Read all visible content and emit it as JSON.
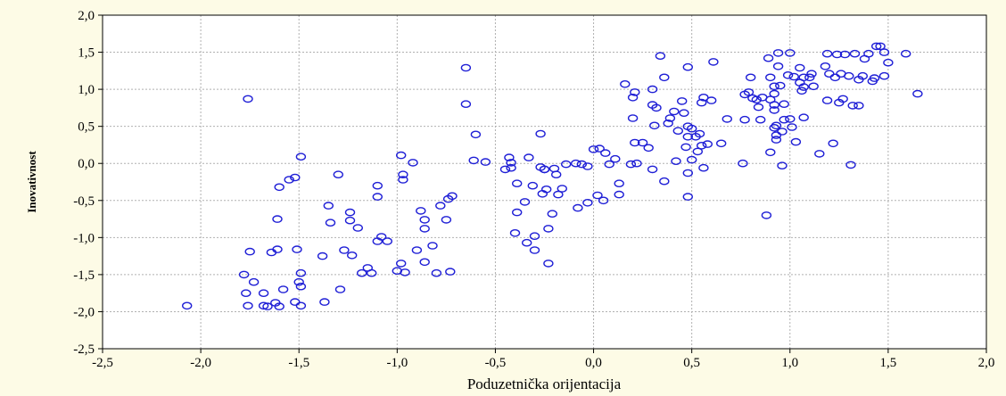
{
  "chart_data": {
    "type": "scatter",
    "xlabel": "Poduzetnička orijentacija",
    "ylabel": "Inovativnost",
    "xlim": [
      -2.5,
      2.0
    ],
    "ylim": [
      -2.5,
      2.0
    ],
    "xticks": [
      "-2,5",
      "-2,0",
      "-1,5",
      "-1,0",
      "-0,5",
      "0,0",
      "0,5",
      "1,0",
      "1,5",
      "2,0"
    ],
    "yticks": [
      "-2,5",
      "-2,0",
      "-1,5",
      "-1,0",
      "-0,5",
      "0,0",
      "0,5",
      "1,0",
      "1,5",
      "2,0"
    ],
    "grid": true,
    "marker": "open-circle",
    "marker_color": "#1f1fd6",
    "points": [
      [
        -2.07,
        -1.92
      ],
      [
        -1.76,
        0.87
      ],
      [
        -1.78,
        -1.5
      ],
      [
        -1.77,
        -1.75
      ],
      [
        -1.76,
        -1.92
      ],
      [
        -1.75,
        -1.19
      ],
      [
        -1.73,
        -1.6
      ],
      [
        -1.68,
        -1.75
      ],
      [
        -1.68,
        -1.92
      ],
      [
        -1.66,
        -1.93
      ],
      [
        -1.64,
        -1.2
      ],
      [
        -1.62,
        -1.88
      ],
      [
        -1.61,
        -1.16
      ],
      [
        -1.6,
        -1.93
      ],
      [
        -1.61,
        -0.75
      ],
      [
        -1.6,
        -0.32
      ],
      [
        -1.58,
        -1.7
      ],
      [
        -1.55,
        -0.22
      ],
      [
        -1.52,
        -0.19
      ],
      [
        -1.51,
        -1.16
      ],
      [
        -1.5,
        -1.6
      ],
      [
        -1.49,
        -1.66
      ],
      [
        -1.49,
        -1.92
      ],
      [
        -1.52,
        -1.87
      ],
      [
        -1.49,
        -1.48
      ],
      [
        -1.49,
        0.09
      ],
      [
        -1.38,
        -1.25
      ],
      [
        -1.37,
        -1.87
      ],
      [
        -1.35,
        -0.57
      ],
      [
        -1.34,
        -0.8
      ],
      [
        -1.29,
        -1.7
      ],
      [
        -1.3,
        -0.15
      ],
      [
        -1.27,
        -1.17
      ],
      [
        -1.24,
        -0.66
      ],
      [
        -1.24,
        -0.77
      ],
      [
        -1.23,
        -1.24
      ],
      [
        -1.2,
        -0.87
      ],
      [
        -1.18,
        -1.48
      ],
      [
        -1.15,
        -1.41
      ],
      [
        -1.13,
        -1.48
      ],
      [
        -1.1,
        -1.05
      ],
      [
        -1.1,
        -0.3
      ],
      [
        -1.1,
        -0.45
      ],
      [
        -1.08,
        -0.99
      ],
      [
        -1.05,
        -1.05
      ],
      [
        -1.0,
        -1.45
      ],
      [
        -0.98,
        -1.35
      ],
      [
        -0.96,
        -1.47
      ],
      [
        -0.98,
        0.11
      ],
      [
        -0.97,
        -0.15
      ],
      [
        -0.97,
        -0.22
      ],
      [
        -0.92,
        0.01
      ],
      [
        -0.9,
        -1.17
      ],
      [
        -0.88,
        -0.64
      ],
      [
        -0.86,
        -0.76
      ],
      [
        -0.86,
        -0.88
      ],
      [
        -0.86,
        -1.33
      ],
      [
        -0.82,
        -1.11
      ],
      [
        -0.8,
        -1.48
      ],
      [
        -0.78,
        -0.57
      ],
      [
        -0.75,
        -0.76
      ],
      [
        -0.74,
        -0.48
      ],
      [
        -0.73,
        -1.46
      ],
      [
        -0.72,
        -0.44
      ],
      [
        -0.65,
        1.29
      ],
      [
        -0.65,
        0.8
      ],
      [
        -0.6,
        0.39
      ],
      [
        -0.61,
        0.04
      ],
      [
        -0.55,
        0.02
      ],
      [
        -0.45,
        -0.08
      ],
      [
        -0.43,
        0.08
      ],
      [
        -0.42,
        0.01
      ],
      [
        -0.42,
        -0.06
      ],
      [
        -0.39,
        -0.27
      ],
      [
        -0.39,
        -0.66
      ],
      [
        -0.4,
        -0.94
      ],
      [
        -0.35,
        -0.52
      ],
      [
        -0.34,
        -1.07
      ],
      [
        -0.33,
        0.08
      ],
      [
        -0.31,
        -0.3
      ],
      [
        -0.3,
        -0.98
      ],
      [
        -0.3,
        -1.17
      ],
      [
        -0.27,
        -0.05
      ],
      [
        -0.26,
        -0.41
      ],
      [
        -0.27,
        0.4
      ],
      [
        -0.25,
        -0.08
      ],
      [
        -0.25,
        -0.08
      ],
      [
        -0.24,
        -0.35
      ],
      [
        -0.23,
        -0.88
      ],
      [
        -0.23,
        -1.35
      ],
      [
        -0.21,
        -0.68
      ],
      [
        -0.2,
        -0.07
      ],
      [
        -0.19,
        -0.15
      ],
      [
        -0.18,
        -0.42
      ],
      [
        -0.16,
        -0.34
      ],
      [
        -0.14,
        -0.01
      ],
      [
        -0.09,
        0.0
      ],
      [
        -0.08,
        -0.6
      ],
      [
        -0.06,
        -0.01
      ],
      [
        -0.03,
        -0.04
      ],
      [
        -0.03,
        -0.53
      ],
      [
        0.0,
        0.19
      ],
      [
        0.02,
        -0.43
      ],
      [
        0.03,
        0.2
      ],
      [
        0.05,
        -0.5
      ],
      [
        0.06,
        0.14
      ],
      [
        0.08,
        -0.01
      ],
      [
        0.11,
        0.06
      ],
      [
        0.13,
        -0.27
      ],
      [
        0.13,
        -0.42
      ],
      [
        0.16,
        1.07
      ],
      [
        0.19,
        -0.01
      ],
      [
        0.2,
        0.61
      ],
      [
        0.2,
        0.89
      ],
      [
        0.21,
        0.28
      ],
      [
        0.21,
        0.96
      ],
      [
        0.22,
        0.0
      ],
      [
        0.25,
        0.28
      ],
      [
        0.28,
        0.21
      ],
      [
        0.3,
        0.79
      ],
      [
        0.31,
        0.51
      ],
      [
        0.3,
        1.0
      ],
      [
        0.3,
        -0.08
      ],
      [
        0.32,
        0.75
      ],
      [
        0.34,
        1.45
      ],
      [
        0.36,
        1.16
      ],
      [
        0.36,
        -0.24
      ],
      [
        0.38,
        0.54
      ],
      [
        0.39,
        0.61
      ],
      [
        0.41,
        0.7
      ],
      [
        0.42,
        0.03
      ],
      [
        0.43,
        0.44
      ],
      [
        0.45,
        0.84
      ],
      [
        0.46,
        0.68
      ],
      [
        0.47,
        0.22
      ],
      [
        0.48,
        0.36
      ],
      [
        0.48,
        0.5
      ],
      [
        0.48,
        1.3
      ],
      [
        0.48,
        -0.13
      ],
      [
        0.48,
        -0.45
      ],
      [
        0.5,
        0.05
      ],
      [
        0.5,
        0.47
      ],
      [
        0.52,
        0.36
      ],
      [
        0.53,
        0.16
      ],
      [
        0.54,
        0.4
      ],
      [
        0.55,
        0.24
      ],
      [
        0.55,
        0.82
      ],
      [
        0.56,
        0.89
      ],
      [
        0.56,
        -0.06
      ],
      [
        0.58,
        0.26
      ],
      [
        0.6,
        0.85
      ],
      [
        0.61,
        1.37
      ],
      [
        0.65,
        0.27
      ],
      [
        0.68,
        0.6
      ],
      [
        0.76,
        0.0
      ],
      [
        0.77,
        0.93
      ],
      [
        0.77,
        0.59
      ],
      [
        0.79,
        0.96
      ],
      [
        0.8,
        1.16
      ],
      [
        0.81,
        0.88
      ],
      [
        0.83,
        0.86
      ],
      [
        0.84,
        0.76
      ],
      [
        0.85,
        0.59
      ],
      [
        0.86,
        0.89
      ],
      [
        0.88,
        -0.7
      ],
      [
        0.89,
        1.42
      ],
      [
        0.9,
        1.16
      ],
      [
        0.9,
        0.86
      ],
      [
        0.9,
        0.15
      ],
      [
        0.92,
        1.04
      ],
      [
        0.92,
        0.94
      ],
      [
        0.92,
        0.79
      ],
      [
        0.92,
        0.72
      ],
      [
        0.92,
        0.48
      ],
      [
        0.93,
        0.38
      ],
      [
        0.93,
        0.32
      ],
      [
        0.93,
        0.51
      ],
      [
        0.94,
        1.31
      ],
      [
        0.94,
        1.49
      ],
      [
        0.95,
        1.05
      ],
      [
        0.96,
        0.43
      ],
      [
        0.96,
        -0.03
      ],
      [
        0.97,
        0.8
      ],
      [
        0.97,
        0.59
      ],
      [
        0.99,
        1.19
      ],
      [
        1.0,
        1.49
      ],
      [
        1.0,
        0.6
      ],
      [
        1.01,
        0.49
      ],
      [
        1.02,
        1.17
      ],
      [
        1.03,
        0.29
      ],
      [
        1.05,
        1.29
      ],
      [
        1.05,
        1.09
      ],
      [
        1.06,
        0.98
      ],
      [
        1.07,
        1.16
      ],
      [
        1.07,
        0.62
      ],
      [
        1.07,
        1.03
      ],
      [
        1.1,
        1.16
      ],
      [
        1.11,
        1.21
      ],
      [
        1.12,
        1.04
      ],
      [
        1.15,
        0.13
      ],
      [
        1.18,
        1.31
      ],
      [
        1.19,
        1.48
      ],
      [
        1.19,
        0.85
      ],
      [
        1.2,
        1.21
      ],
      [
        1.22,
        0.27
      ],
      [
        1.23,
        1.16
      ],
      [
        1.24,
        1.47
      ],
      [
        1.25,
        0.82
      ],
      [
        1.26,
        1.21
      ],
      [
        1.27,
        0.87
      ],
      [
        1.28,
        1.47
      ],
      [
        1.3,
        1.18
      ],
      [
        1.31,
        -0.02
      ],
      [
        1.32,
        0.78
      ],
      [
        1.33,
        1.48
      ],
      [
        1.35,
        1.13
      ],
      [
        1.35,
        0.78
      ],
      [
        1.37,
        1.18
      ],
      [
        1.38,
        1.41
      ],
      [
        1.4,
        1.48
      ],
      [
        1.42,
        1.11
      ],
      [
        1.43,
        1.15
      ],
      [
        1.44,
        1.58
      ],
      [
        1.46,
        1.58
      ],
      [
        1.48,
        1.18
      ],
      [
        1.48,
        1.5
      ],
      [
        1.5,
        1.36
      ],
      [
        1.59,
        1.48
      ],
      [
        1.65,
        0.94
      ]
    ]
  }
}
